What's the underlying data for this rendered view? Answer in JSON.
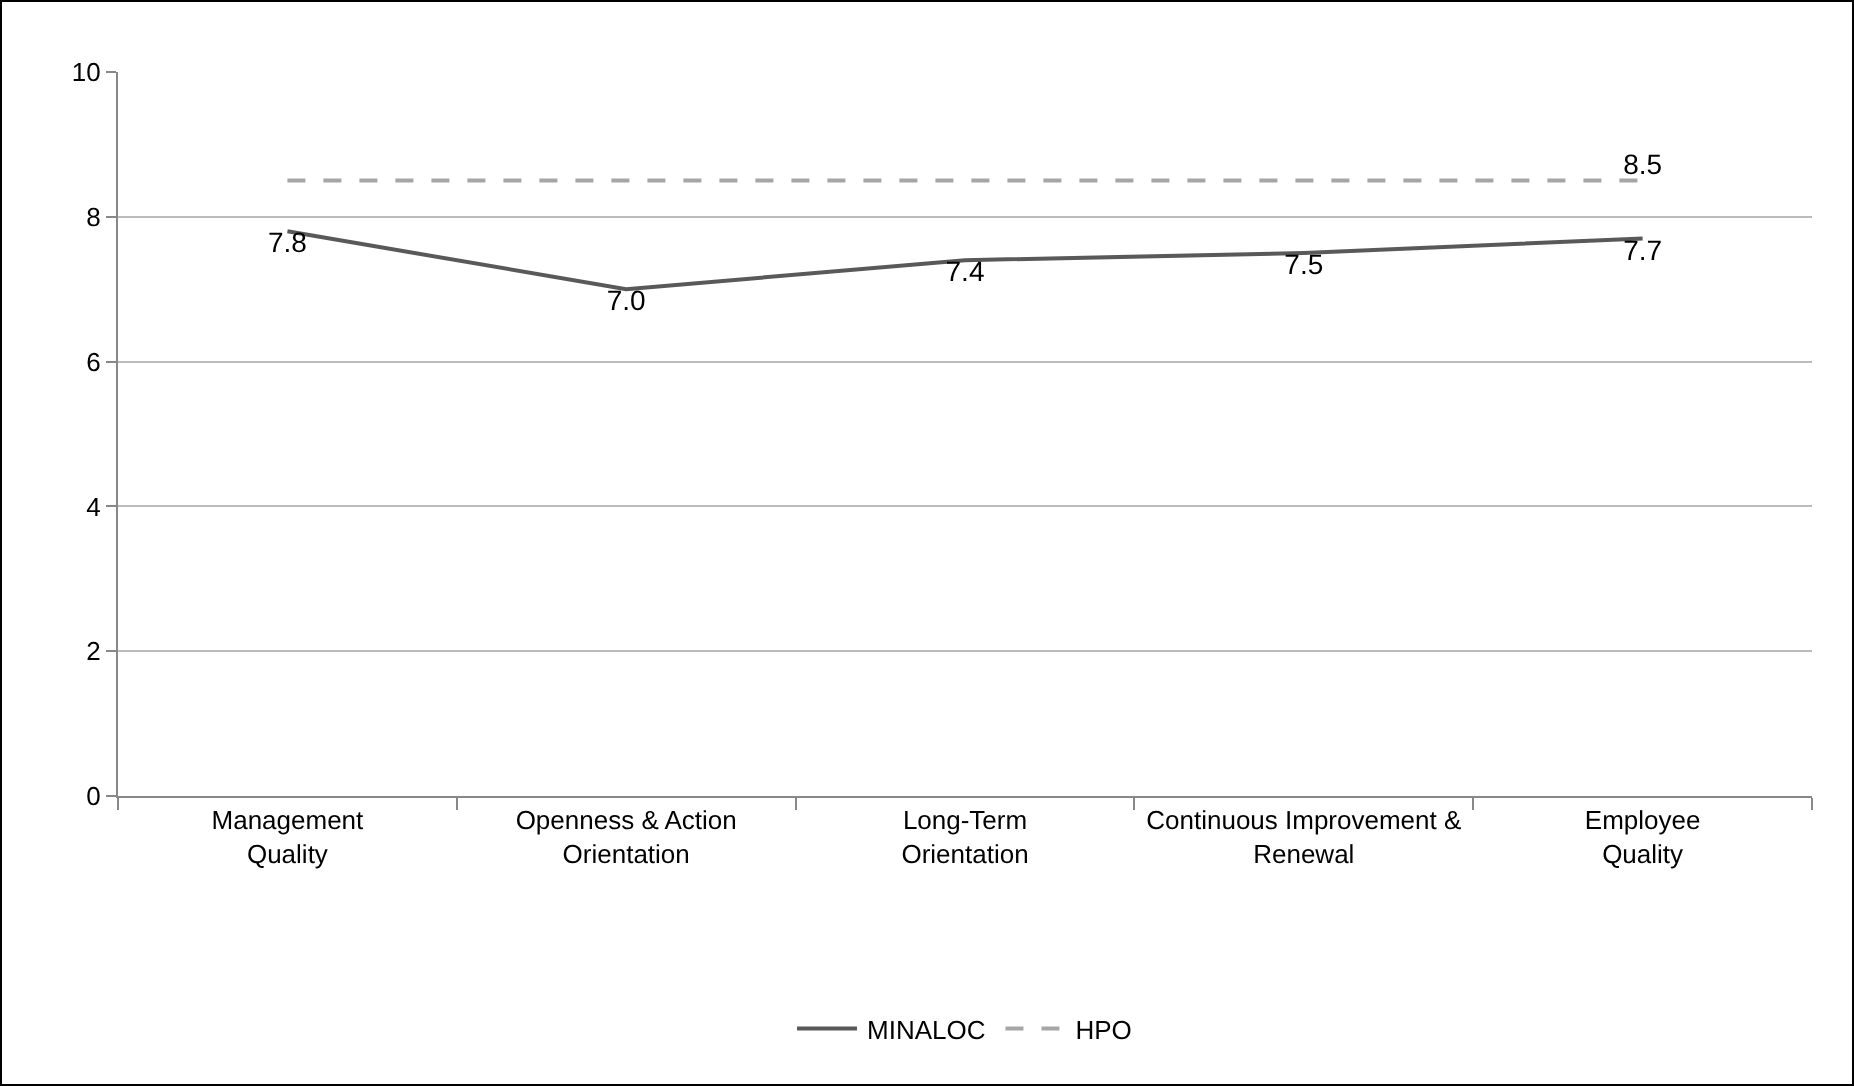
{
  "chart_data": {
    "type": "line",
    "categories": [
      "Management Quality",
      "Openness & Action Orientation",
      "Long-Term Orientation",
      "Continuous Improvement & Renewal",
      "Employee Quality"
    ],
    "series": [
      {
        "name": "MINALOC",
        "color": "#595959",
        "values": [
          7.8,
          7.0,
          7.4,
          7.5,
          7.7
        ],
        "value_labels": [
          "7.8",
          "7.0",
          "7.4",
          "7.5",
          "7.7"
        ],
        "line_style": "solid"
      },
      {
        "name": "HPO",
        "color": "#a6a6a6",
        "values": [
          8.5,
          8.5,
          8.5,
          8.5,
          8.5
        ],
        "value_labels": [
          null,
          null,
          null,
          null,
          "8.5"
        ],
        "line_style": "dashed"
      }
    ],
    "ylim": [
      0,
      10
    ],
    "yticks": [
      0,
      2,
      4,
      6,
      8,
      10
    ],
    "grid": "y",
    "legend": "bottom",
    "marker": "none"
  }
}
